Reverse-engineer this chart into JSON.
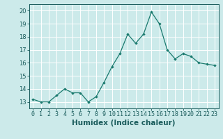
{
  "x": [
    0,
    1,
    2,
    3,
    4,
    5,
    6,
    7,
    8,
    9,
    10,
    11,
    12,
    13,
    14,
    15,
    16,
    17,
    18,
    19,
    20,
    21,
    22,
    23
  ],
  "y": [
    13.2,
    13.0,
    13.0,
    13.5,
    14.0,
    13.7,
    13.7,
    13.0,
    13.4,
    14.5,
    15.7,
    16.7,
    18.2,
    17.5,
    18.2,
    19.9,
    19.0,
    17.0,
    16.3,
    16.7,
    16.5,
    16.0,
    15.9,
    15.8
  ],
  "ylim": [
    12.5,
    20.5
  ],
  "yticks": [
    13,
    14,
    15,
    16,
    17,
    18,
    19,
    20
  ],
  "xticks": [
    0,
    1,
    2,
    3,
    4,
    5,
    6,
    7,
    8,
    9,
    10,
    11,
    12,
    13,
    14,
    15,
    16,
    17,
    18,
    19,
    20,
    21,
    22,
    23
  ],
  "xlabel": "Humidex (Indice chaleur)",
  "line_color": "#1a7a6e",
  "marker": "D",
  "marker_size": 2.2,
  "bg_color": "#cceaea",
  "grid_color": "#ffffff",
  "text_color": "#1a5c5c",
  "xlabel_fontsize": 7.5,
  "tick_fontsize": 6.0,
  "xlim_min": -0.5,
  "xlim_max": 23.5
}
